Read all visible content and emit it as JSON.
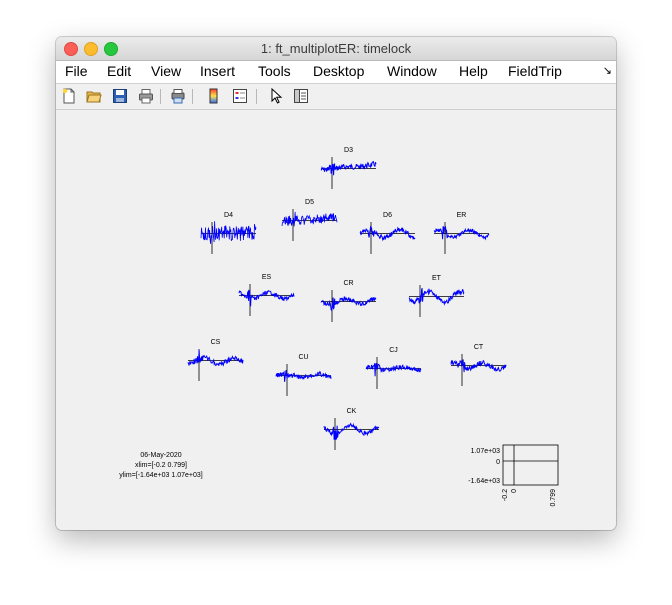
{
  "window": {
    "title": "1: ft_multiplotER: timelock"
  },
  "menu": [
    "File",
    "Edit",
    "View",
    "Insert",
    "Tools",
    "Desktop",
    "Window",
    "Help",
    "FieldTrip"
  ],
  "toolbar": [
    "new-file-icon",
    "open-folder-icon",
    "save-icon",
    "print-icon",
    "print-preview-icon",
    "colorbar-icon",
    "legend-icon",
    "pointer-icon",
    "property-editor-icon"
  ],
  "colors": {
    "trace": "#0000ff",
    "axis": "#000000",
    "background": "#f0f0f0"
  },
  "channels": [
    {
      "label": "D3",
      "noise": 0.35,
      "trend": -0.5,
      "slow": 0.1
    },
    {
      "label": "D4",
      "noise": 1.4,
      "trend": -0.1,
      "slow": 0.2
    },
    {
      "label": "D5",
      "noise": 0.8,
      "trend": -0.3,
      "slow": 0.1
    },
    {
      "label": "D6",
      "noise": 0.25,
      "trend": 0.0,
      "slow": 0.8
    },
    {
      "label": "ER",
      "noise": 0.15,
      "trend": 0.0,
      "slow": 0.7
    },
    {
      "label": "ES",
      "noise": 0.2,
      "trend": 0.0,
      "slow": 0.6
    },
    {
      "label": "CR",
      "noise": 0.2,
      "trend": -0.1,
      "slow": 0.5
    },
    {
      "label": "ET",
      "noise": 0.3,
      "trend": 0.0,
      "slow": 1.0
    },
    {
      "label": "CS",
      "noise": 0.3,
      "trend": 0.1,
      "slow": 0.6
    },
    {
      "label": "CU",
      "noise": 0.3,
      "trend": 0.0,
      "slow": 0.4
    },
    {
      "label": "CJ",
      "noise": 0.25,
      "trend": 0.0,
      "slow": 0.3
    },
    {
      "label": "CT",
      "noise": 0.3,
      "trend": 0.1,
      "slow": 0.6
    },
    {
      "label": "CK",
      "noise": 0.2,
      "trend": 0.0,
      "slow": 0.8
    }
  ],
  "info": {
    "date": "06-May-2020",
    "xlim": "xlim=[-0.2 0.799]",
    "ylim": "ylim=[-1.64e+03 1.07e+03]"
  },
  "scale": {
    "ymax": "1.07e+03",
    "yzero": "0",
    "ymin": "-1.64e+03",
    "xmin": "-0.2",
    "xzero": "0",
    "xmax": "0.799"
  }
}
